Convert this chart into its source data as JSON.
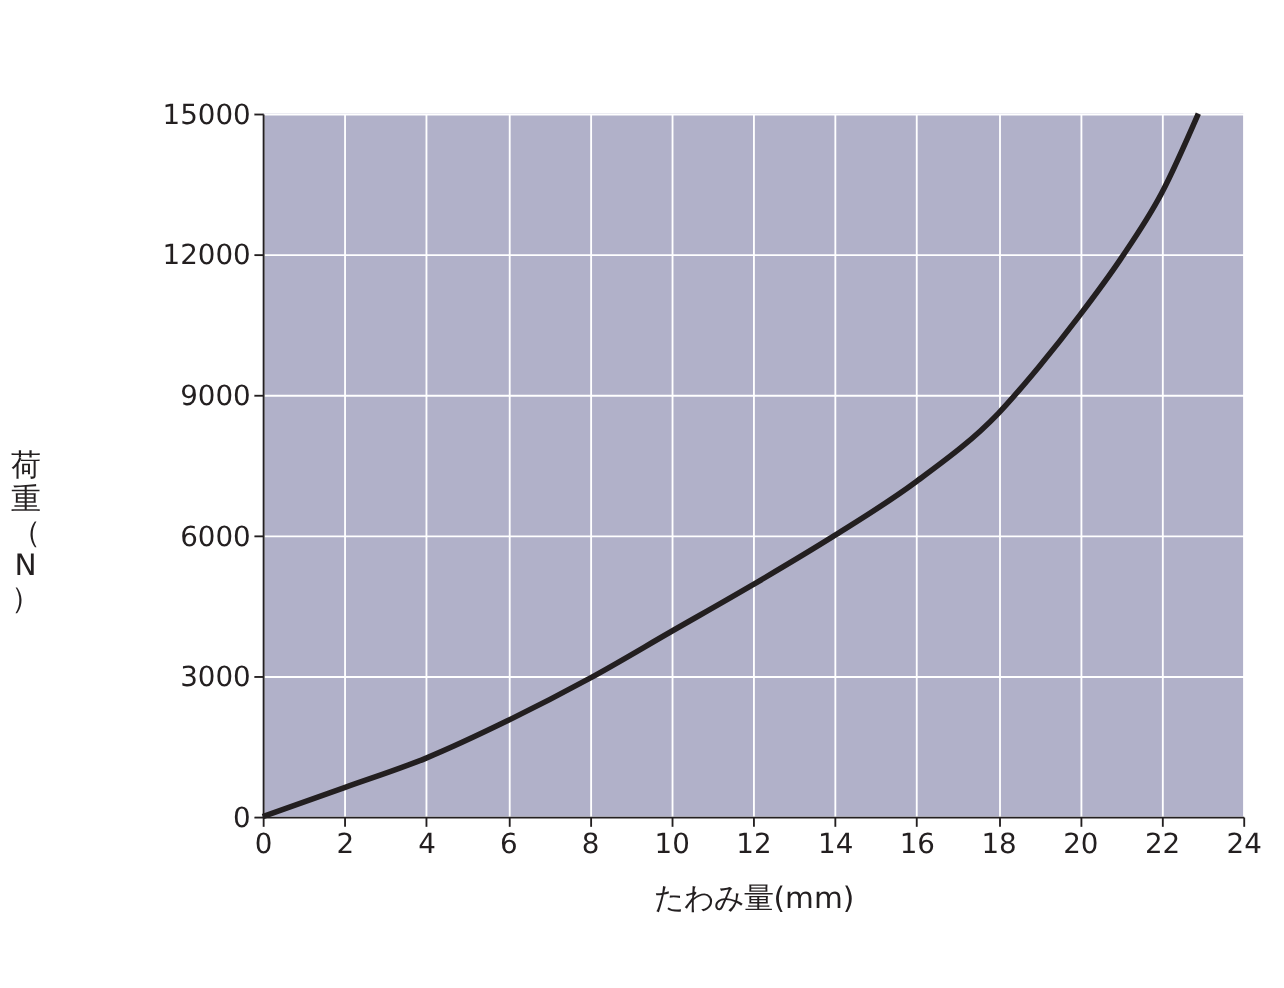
{
  "chart_data": {
    "type": "line",
    "xlabel": "たわみ量(mm)",
    "ylabel": "荷重（N）",
    "x": [
      0,
      2,
      4,
      6,
      8,
      10,
      12,
      14,
      16,
      18,
      19,
      20,
      21,
      22,
      22.9
    ],
    "series": [
      {
        "color": "#231f20",
        "values": [
          0,
          620,
          1250,
          2050,
          2950,
          3950,
          4950,
          6000,
          7150,
          8600,
          9600,
          10700,
          11900,
          13300,
          15000
        ]
      }
    ],
    "xlim": [
      0,
      24
    ],
    "xticks": [
      0,
      2,
      4,
      6,
      8,
      10,
      12,
      14,
      16,
      18,
      20,
      22,
      24
    ],
    "ylim": [
      0,
      15000
    ],
    "yticks": [
      0,
      3000,
      6000,
      9000,
      12000,
      15000
    ],
    "grid": true,
    "legend": false,
    "marker": "none",
    "line_style": "solid"
  }
}
